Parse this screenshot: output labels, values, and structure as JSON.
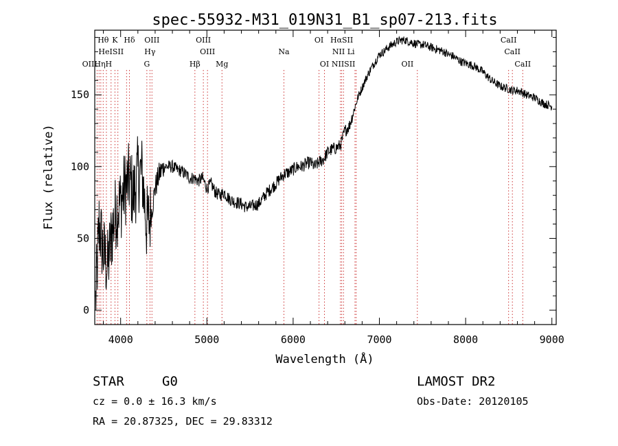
{
  "chart_data": {
    "type": "line",
    "title": "spec-55932-M31_019N31_B1_sp07-213.fits",
    "xlabel": "Wavelength (Å)",
    "ylabel": "Flux (relative)",
    "xlim": [
      3700,
      9050
    ],
    "ylim": [
      -10,
      195
    ],
    "xticks": [
      4000,
      5000,
      6000,
      7000,
      8000,
      9000
    ],
    "yticks": [
      0,
      50,
      100,
      150
    ],
    "grid": false,
    "series": [
      {
        "color": "#000000",
        "x": [
          3710,
          3750,
          3800,
          3850,
          3900,
          3950,
          4000,
          4050,
          4100,
          4150,
          4200,
          4250,
          4300,
          4350,
          4400,
          4450,
          4500,
          4550,
          4600,
          4650,
          4700,
          4750,
          4800,
          4850,
          4900,
          4950,
          5000,
          5050,
          5100,
          5150,
          5200,
          5250,
          5300,
          5350,
          5400,
          5450,
          5500,
          5550,
          5600,
          5650,
          5700,
          5750,
          5800,
          5850,
          5900,
          5950,
          6000,
          6050,
          6100,
          6150,
          6200,
          6250,
          6300,
          6350,
          6400,
          6450,
          6500,
          6550,
          6600,
          6650,
          6700,
          6750,
          6800,
          6850,
          6900,
          6950,
          7000,
          7050,
          7100,
          7150,
          7200,
          7250,
          7300,
          7350,
          7400,
          7450,
          7500,
          7550,
          7600,
          7650,
          7700,
          7750,
          7800,
          7850,
          7900,
          7950,
          8000,
          8050,
          8100,
          8150,
          8200,
          8250,
          8300,
          8350,
          8400,
          8450,
          8500,
          8550,
          8600,
          8650,
          8700,
          8750,
          8800,
          8850,
          8900,
          8950,
          9000
        ],
        "values": [
          5,
          60,
          40,
          30,
          55,
          70,
          75,
          85,
          90,
          80,
          95,
          95,
          60,
          65,
          85,
          95,
          100,
          100,
          100,
          98,
          97,
          95,
          92,
          92,
          90,
          92,
          85,
          88,
          82,
          80,
          82,
          78,
          76,
          75,
          74,
          72,
          72,
          73,
          74,
          78,
          82,
          85,
          88,
          92,
          95,
          96,
          98,
          100,
          100,
          102,
          103,
          100,
          103,
          105,
          110,
          112,
          113,
          115,
          125,
          128,
          138,
          148,
          155,
          162,
          168,
          173,
          178,
          180,
          183,
          185,
          187,
          188,
          188,
          187,
          186,
          185,
          185,
          184,
          183,
          182,
          181,
          180,
          178,
          177,
          175,
          173,
          172,
          171,
          170,
          168,
          166,
          163,
          160,
          158,
          156,
          155,
          154,
          153,
          153,
          152,
          150,
          149,
          148,
          146,
          144,
          143,
          142
        ]
      }
    ],
    "lines": [
      {
        "label": "Hθ",
        "x": 3798,
        "row": 0
      },
      {
        "label": "K",
        "x": 3934,
        "row": 0
      },
      {
        "label": "Hδ",
        "x": 4102,
        "row": 0
      },
      {
        "label": "OIII",
        "x": 4363,
        "row": 0
      },
      {
        "label": "OIII",
        "x": 4959,
        "row": 0
      },
      {
        "label": "OI",
        "x": 6300,
        "row": 0
      },
      {
        "label": "HαSII",
        "x": 6563,
        "row": 0
      },
      {
        "label": "CaII",
        "x": 8498,
        "row": 0
      },
      {
        "label": "HeISII",
        "x": 3889,
        "row": 1
      },
      {
        "label": "Hγ",
        "x": 4340,
        "row": 1
      },
      {
        "label": "OIII",
        "x": 5007,
        "row": 1
      },
      {
        "label": "Na",
        "x": 5893,
        "row": 1
      },
      {
        "label": "NII Li",
        "x": 6584,
        "row": 1
      },
      {
        "label": "CaII",
        "x": 8542,
        "row": 1
      },
      {
        "label": "OIIHηH",
        "x": 3727,
        "row": 2
      },
      {
        "label": "G",
        "x": 4304,
        "row": 2
      },
      {
        "label": "Hβ",
        "x": 4861,
        "row": 2
      },
      {
        "label": "Mg",
        "x": 5175,
        "row": 2
      },
      {
        "label": "OI",
        "x": 6363,
        "row": 2
      },
      {
        "label": "NIISII",
        "x": 6583,
        "row": 2
      },
      {
        "label": "OII",
        "x": 7325,
        "row": 2
      },
      {
        "label": "CaII",
        "x": 8662,
        "row": 2
      }
    ],
    "line_positions": [
      3727,
      3750,
      3770,
      3798,
      3835,
      3889,
      3934,
      3968,
      4069,
      4102,
      4304,
      4340,
      4363,
      4861,
      4959,
      5007,
      5175,
      5893,
      6300,
      6363,
      6548,
      6563,
      6584,
      6717,
      6731,
      7440,
      8498,
      8542,
      8662
    ]
  },
  "info": {
    "object_class": "STAR",
    "subclass": "G0",
    "survey": "LAMOST DR2",
    "cz": "cz = 0.0 ± 16.3 km/s",
    "obs_date": "Obs-Date: 20120105",
    "coords": "RA =  20.87325, DEC =  29.83312"
  }
}
